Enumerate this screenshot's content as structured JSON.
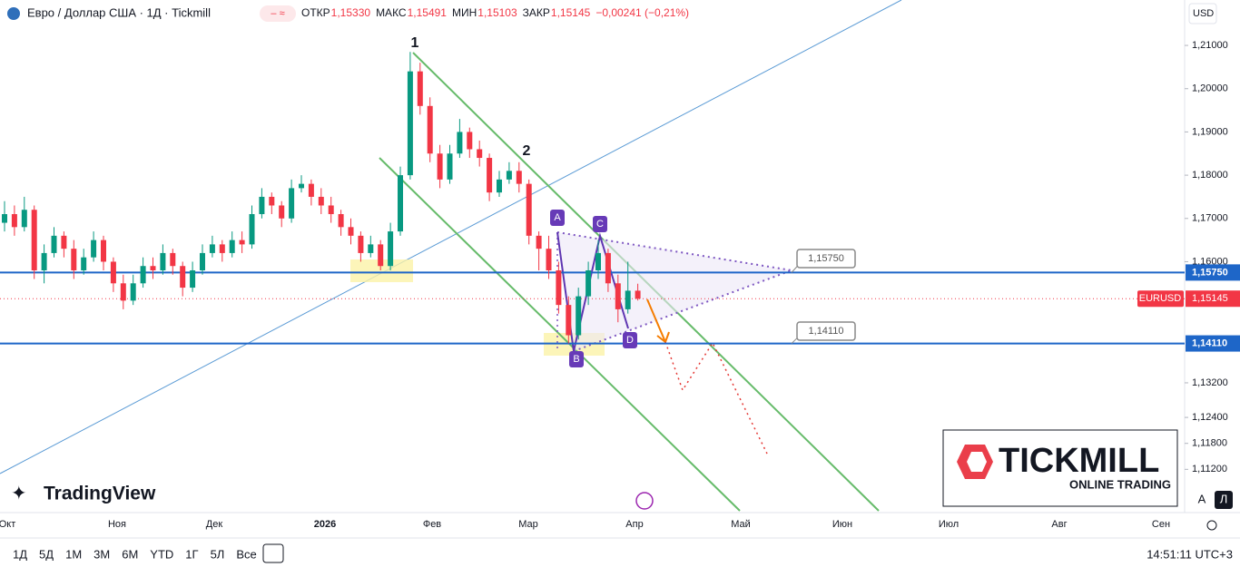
{
  "header": {
    "symbol": "Евро / Доллар США · 1Д · Tickmill",
    "ohlc": [
      {
        "label": "ОТКР",
        "value": "1,15330"
      },
      {
        "label": "МАКС",
        "value": "1,15491"
      },
      {
        "label": "МИН",
        "value": "1,15103"
      },
      {
        "label": "ЗАКР",
        "value": "1,15145"
      }
    ],
    "change": "−0,00241 (−0,21%)"
  },
  "currency": "USD",
  "ylim": [
    1.102,
    1.2205
  ],
  "yticks": [
    {
      "value": 1.21,
      "label": "1,21000"
    },
    {
      "value": 1.2,
      "label": "1,20000"
    },
    {
      "value": 1.19,
      "label": "1,19000"
    },
    {
      "value": 1.18,
      "label": "1,18000"
    },
    {
      "value": 1.17,
      "label": "1,17000"
    },
    {
      "value": 1.16,
      "label": "1,16000"
    },
    {
      "value": 1.132,
      "label": "1,13200"
    },
    {
      "value": 1.124,
      "label": "1,12400"
    },
    {
      "value": 1.118,
      "label": "1,11800"
    },
    {
      "value": 1.112,
      "label": "1,11200"
    }
  ],
  "levels": [
    {
      "value": 1.1575,
      "label": "1,15750"
    },
    {
      "value": 1.1411,
      "label": "1,14110"
    }
  ],
  "last": {
    "name": "EURUSD",
    "value": 1.15145,
    "label": "1,15145"
  },
  "candles": [
    [
      1.169,
      1.174,
      1.167,
      1.171
    ],
    [
      1.171,
      1.173,
      1.166,
      1.168
    ],
    [
      1.168,
      1.175,
      1.167,
      1.172
    ],
    [
      1.172,
      1.173,
      1.156,
      1.158
    ],
    [
      1.158,
      1.164,
      1.155,
      1.162
    ],
    [
      1.162,
      1.168,
      1.161,
      1.166
    ],
    [
      1.166,
      1.167,
      1.161,
      1.163
    ],
    [
      1.163,
      1.165,
      1.156,
      1.158
    ],
    [
      1.158,
      1.163,
      1.157,
      1.161
    ],
    [
      1.161,
      1.167,
      1.16,
      1.165
    ],
    [
      1.165,
      1.166,
      1.158,
      1.16
    ],
    [
      1.16,
      1.161,
      1.153,
      1.155
    ],
    [
      1.155,
      1.157,
      1.149,
      1.151
    ],
    [
      1.151,
      1.157,
      1.15,
      1.155
    ],
    [
      1.155,
      1.161,
      1.154,
      1.159
    ],
    [
      1.159,
      1.161,
      1.156,
      1.158
    ],
    [
      1.158,
      1.164,
      1.157,
      1.162
    ],
    [
      1.162,
      1.163,
      1.157,
      1.159
    ],
    [
      1.159,
      1.16,
      1.152,
      1.154
    ],
    [
      1.154,
      1.16,
      1.153,
      1.158
    ],
    [
      1.158,
      1.164,
      1.157,
      1.162
    ],
    [
      1.162,
      1.166,
      1.161,
      1.164
    ],
    [
      1.164,
      1.165,
      1.16,
      1.162
    ],
    [
      1.162,
      1.167,
      1.161,
      1.165
    ],
    [
      1.165,
      1.167,
      1.162,
      1.164
    ],
    [
      1.164,
      1.173,
      1.163,
      1.171
    ],
    [
      1.171,
      1.177,
      1.17,
      1.175
    ],
    [
      1.175,
      1.176,
      1.171,
      1.173
    ],
    [
      1.173,
      1.174,
      1.168,
      1.17
    ],
    [
      1.17,
      1.179,
      1.169,
      1.177
    ],
    [
      1.177,
      1.18,
      1.176,
      1.178
    ],
    [
      1.178,
      1.179,
      1.173,
      1.175
    ],
    [
      1.175,
      1.177,
      1.171,
      1.173
    ],
    [
      1.173,
      1.175,
      1.169,
      1.171
    ],
    [
      1.171,
      1.172,
      1.166,
      1.168
    ],
    [
      1.168,
      1.17,
      1.164,
      1.166
    ],
    [
      1.166,
      1.167,
      1.16,
      1.162
    ],
    [
      1.162,
      1.166,
      1.161,
      1.164
    ],
    [
      1.164,
      1.165,
      1.158,
      1.159
    ],
    [
      1.159,
      1.169,
      1.158,
      1.167
    ],
    [
      1.167,
      1.182,
      1.166,
      1.18
    ],
    [
      1.18,
      1.2085,
      1.179,
      1.204
    ],
    [
      1.204,
      1.206,
      1.194,
      1.196
    ],
    [
      1.196,
      1.198,
      1.183,
      1.185
    ],
    [
      1.185,
      1.187,
      1.177,
      1.179
    ],
    [
      1.179,
      1.187,
      1.178,
      1.185
    ],
    [
      1.185,
      1.193,
      1.184,
      1.19
    ],
    [
      1.19,
      1.191,
      1.184,
      1.186
    ],
    [
      1.186,
      1.188,
      1.182,
      1.184
    ],
    [
      1.184,
      1.185,
      1.174,
      1.176
    ],
    [
      1.176,
      1.181,
      1.175,
      1.179
    ],
    [
      1.179,
      1.183,
      1.178,
      1.181
    ],
    [
      1.181,
      1.183,
      1.176,
      1.178
    ],
    [
      1.178,
      1.179,
      1.164,
      1.166
    ],
    [
      1.166,
      1.167,
      1.158,
      1.163
    ],
    [
      1.163,
      1.166,
      1.156,
      1.158
    ],
    [
      1.158,
      1.16,
      1.148,
      1.15
    ],
    [
      1.15,
      1.152,
      1.1411,
      1.143
    ],
    [
      1.143,
      1.154,
      1.142,
      1.152
    ],
    [
      1.152,
      1.16,
      1.15,
      1.158
    ],
    [
      1.158,
      1.165,
      1.156,
      1.162
    ],
    [
      1.162,
      1.163,
      1.153,
      1.155
    ],
    [
      1.155,
      1.157,
      1.146,
      1.149
    ],
    [
      1.149,
      1.16,
      1.148,
      1.1533
    ],
    [
      1.1533,
      1.15491,
      1.15103,
      1.15145
    ]
  ],
  "annotations": {
    "wave": [
      "1",
      "2"
    ],
    "pattern": [
      "A",
      "B",
      "C",
      "D"
    ]
  },
  "time_axis": [
    "Окт",
    "Ноя",
    "Дек",
    "2026",
    "Фев",
    "Мар",
    "Апр",
    "Май",
    "Июн",
    "Июл",
    "Авг",
    "Сен"
  ],
  "timeframes": [
    "1Д",
    "5Д",
    "1М",
    "3М",
    "6М",
    "YTD",
    "1Г",
    "5Л",
    "Все"
  ],
  "clock": "14:51:11 UTC+3",
  "watermark": "TradingView",
  "logo": {
    "brand": "TICKMILL",
    "tagline": "ONLINE TRADING"
  },
  "scale_buttons": [
    "A",
    "Л"
  ]
}
